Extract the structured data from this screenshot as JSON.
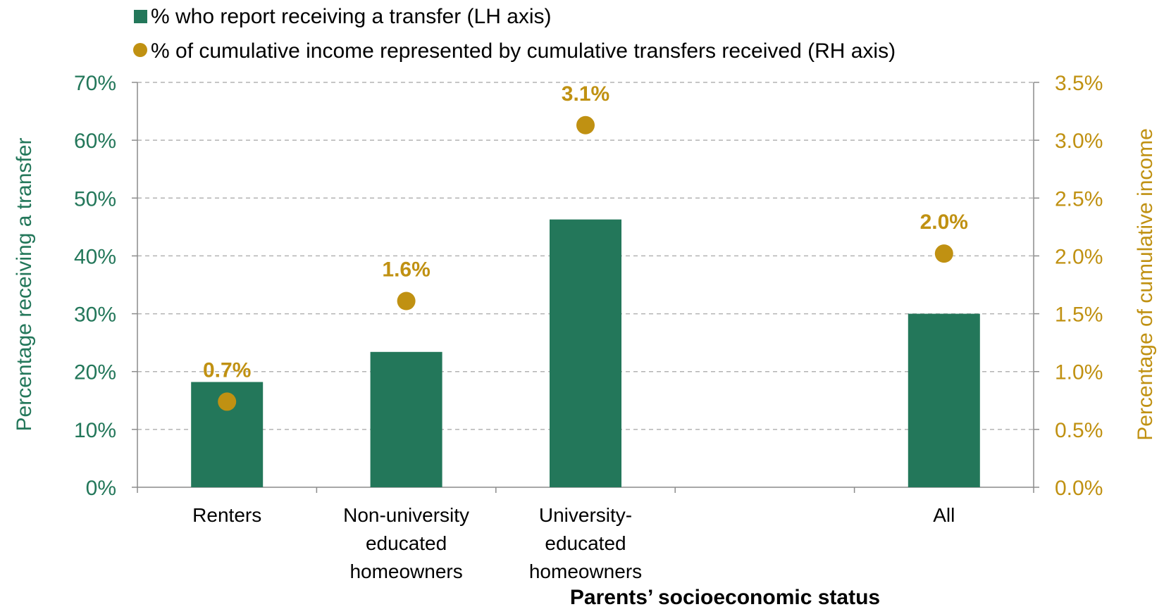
{
  "chart_data": {
    "type": "bar",
    "categories": [
      [
        "Renters"
      ],
      [
        "Non-university",
        "educated",
        "homeowners"
      ],
      [
        "University-",
        "educated",
        "homeowners"
      ],
      [
        ""
      ],
      [
        "All"
      ]
    ],
    "series": [
      {
        "name": "% who report receiving a transfer (LH axis)",
        "type": "bar",
        "axis": "left",
        "color": "#23775A",
        "values": [
          18.2,
          23.4,
          46.3,
          null,
          30.0
        ]
      },
      {
        "name": "% of cumulative income represented by cumulative transfers received (RH axis)",
        "type": "scatter",
        "axis": "right",
        "color": "#C09112",
        "values": [
          0.74,
          1.61,
          3.13,
          null,
          2.02
        ],
        "labels": [
          "0.7%",
          "1.6%",
          "3.1%",
          "",
          "2.0%"
        ]
      }
    ],
    "xlabel": "Parents’ socioeconomic status",
    "ylabel": "Percentage receiving a transfer",
    "y2label": "Percentage of cumulative income",
    "ylim": [
      0,
      70
    ],
    "y2lim": [
      0,
      3.5
    ],
    "yticks": [
      "0%",
      "10%",
      "20%",
      "30%",
      "40%",
      "50%",
      "60%",
      "70%"
    ],
    "y2ticks": [
      "0.0%",
      "0.5%",
      "1.0%",
      "1.5%",
      "2.0%",
      "2.5%",
      "3.0%",
      "3.5%"
    ],
    "grid": true,
    "legend_position": "top-left"
  }
}
